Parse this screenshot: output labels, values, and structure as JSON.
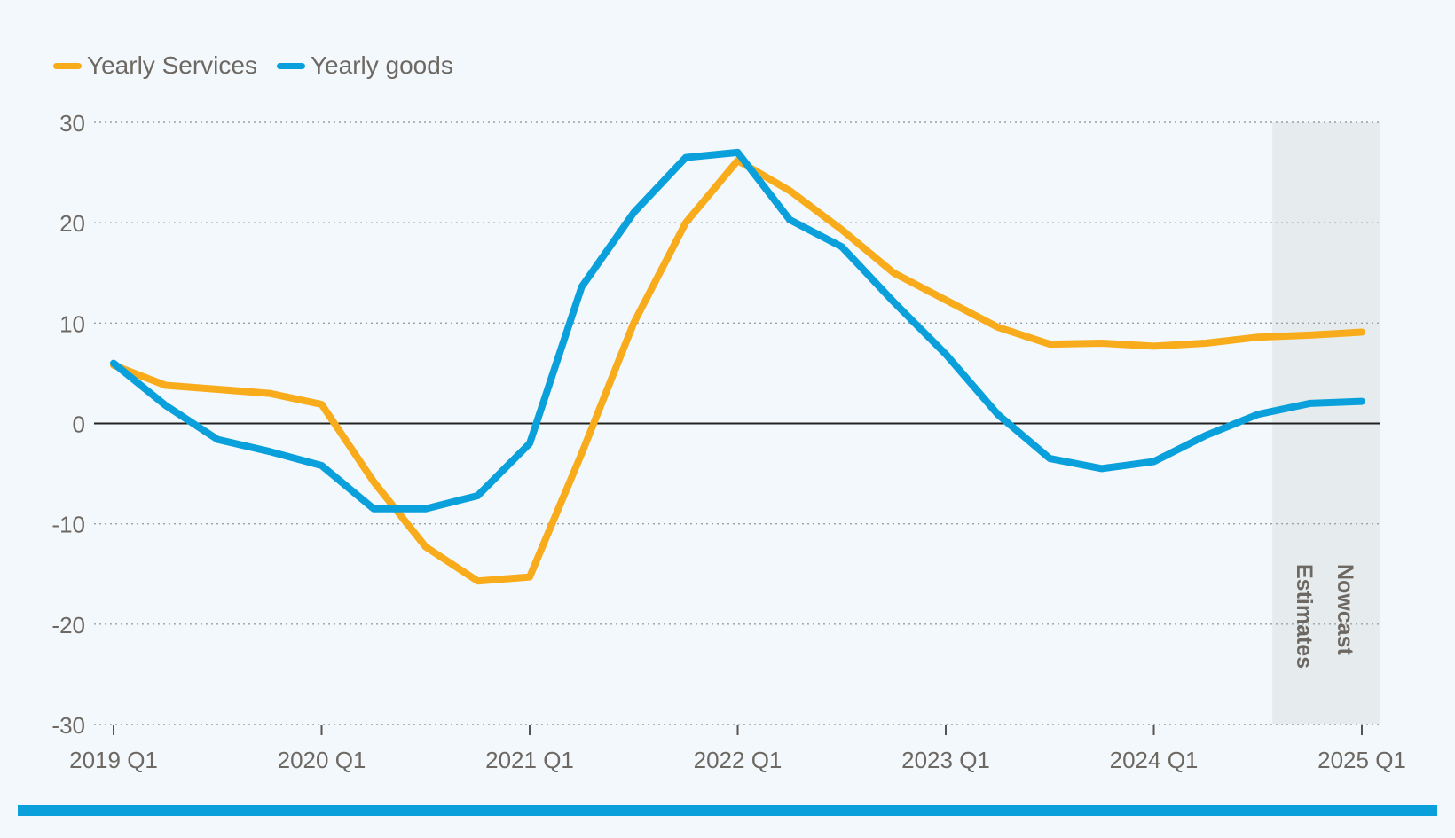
{
  "chart_data": {
    "type": "line",
    "title": "",
    "xlabel": "",
    "ylabel": "",
    "ylim": [
      -30,
      30
    ],
    "yticks": [
      30,
      20,
      10,
      0,
      -10,
      -20,
      -30
    ],
    "grid": "horizontal-dotted",
    "legend_position": "top-left",
    "categories": [
      "2019 Q1",
      "2019 Q2",
      "2019 Q3",
      "2019 Q4",
      "2020 Q1",
      "2020 Q2",
      "2020 Q3",
      "2020 Q4",
      "2021 Q1",
      "2021 Q2",
      "2021 Q3",
      "2021 Q4",
      "2022 Q1",
      "2022 Q2",
      "2022 Q3",
      "2022 Q4",
      "2023 Q1",
      "2023 Q2",
      "2023 Q3",
      "2023 Q4",
      "2024 Q1",
      "2024 Q2",
      "2024 Q3",
      "2024 Q4",
      "2025 Q1"
    ],
    "x_tick_labels": [
      "2019 Q1",
      "2020 Q1",
      "2021 Q1",
      "2022 Q1",
      "2023 Q1",
      "2024 Q1",
      "2025 Q1"
    ],
    "series": [
      {
        "name": "Yearly Services",
        "color": "#f8ac1c",
        "values": [
          5.8,
          3.8,
          3.4,
          3.0,
          1.9,
          -5.8,
          -12.3,
          -15.7,
          -15.3,
          -3.0,
          10.0,
          20.0,
          26.2,
          23.2,
          19.3,
          15.0,
          12.3,
          9.6,
          7.9,
          8.0,
          7.7,
          8.0,
          8.6,
          8.8,
          9.1
        ]
      },
      {
        "name": "Yearly goods",
        "color": "#0aa0db",
        "values": [
          6.0,
          1.8,
          -1.6,
          -2.8,
          -4.2,
          -8.5,
          -8.5,
          -7.2,
          -2.0,
          13.6,
          21.0,
          26.5,
          27.0,
          20.3,
          17.6,
          12.1,
          6.9,
          0.9,
          -3.5,
          -4.5,
          -3.8,
          -1.2,
          0.9,
          2.0,
          2.2
        ]
      }
    ],
    "annotations": {
      "shaded_region_start": "2024 Q4",
      "labels": [
        "Estimates",
        "Nowcast"
      ]
    },
    "zero_line_color": "#222222",
    "label_color": "#6d6862",
    "shade_color": "#e6ecee",
    "rule_color": "#0aa0db"
  }
}
